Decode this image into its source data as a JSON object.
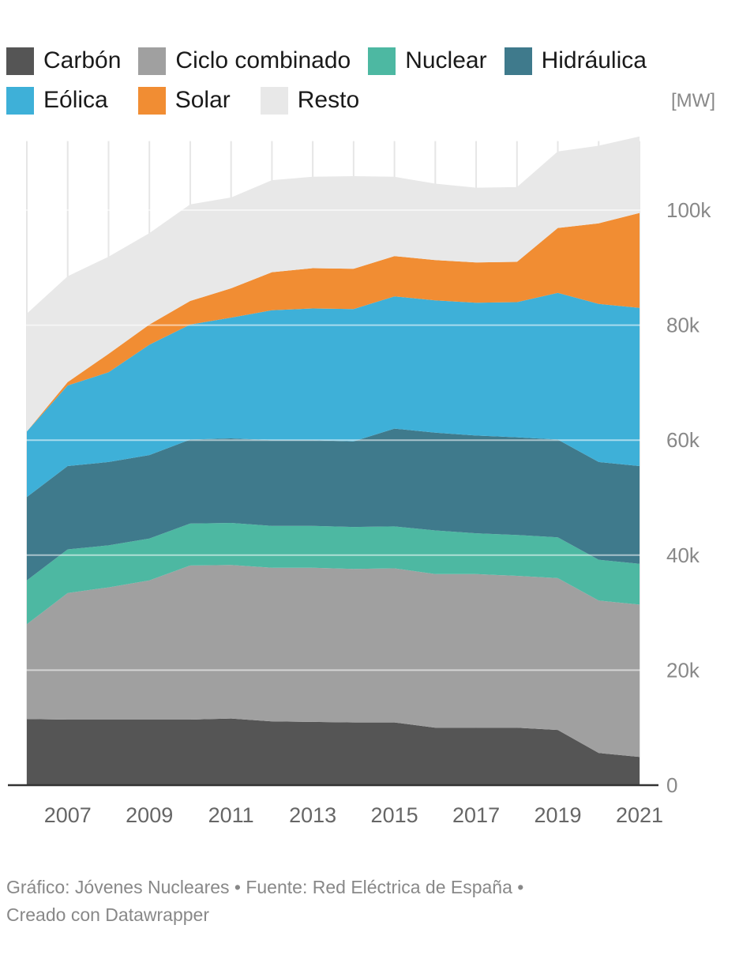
{
  "chart_data": {
    "type": "area",
    "stacked": true,
    "title": "",
    "xlabel": "",
    "ylabel": "",
    "unit": "[MW]",
    "x": [
      2006,
      2007,
      2008,
      2009,
      2010,
      2011,
      2012,
      2013,
      2014,
      2015,
      2016,
      2017,
      2018,
      2019,
      2020,
      2021
    ],
    "x_ticks": [
      "2007",
      "2009",
      "2011",
      "2013",
      "2015",
      "2017",
      "2019",
      "2021"
    ],
    "y_ticks": [
      "0",
      "20k",
      "40k",
      "60k",
      "80k",
      "100k"
    ],
    "ylim": [
      0,
      112000
    ],
    "grid": "vertical and horizontal",
    "legend_position": "top",
    "series": [
      {
        "name": "Carbón",
        "color": "#555555",
        "values": [
          11500,
          11400,
          11400,
          11400,
          11400,
          11600,
          11100,
          11000,
          10900,
          10900,
          10000,
          10000,
          10000,
          9600,
          5600,
          4900
        ]
      },
      {
        "name": "Ciclo combinado",
        "color": "#a0a0a0",
        "values": [
          16500,
          22000,
          23000,
          24200,
          26800,
          26700,
          26700,
          26800,
          26700,
          26800,
          26700,
          26700,
          26400,
          26400,
          26500,
          26500
        ]
      },
      {
        "name": "Nuclear",
        "color": "#4db8a2",
        "values": [
          7600,
          7600,
          7300,
          7300,
          7300,
          7300,
          7300,
          7300,
          7300,
          7300,
          7600,
          7100,
          7100,
          7100,
          7100,
          7100
        ]
      },
      {
        "name": "Hidráulica",
        "color": "#3f7a8c",
        "values": [
          14500,
          14500,
          14500,
          14500,
          14600,
          14700,
          14900,
          14900,
          14900,
          17000,
          17000,
          17000,
          17000,
          17000,
          17000,
          17000
        ]
      },
      {
        "name": "Eólica",
        "color": "#3eb0d8",
        "values": [
          11400,
          14000,
          15600,
          19200,
          20000,
          21000,
          22600,
          22900,
          23000,
          23000,
          23000,
          23100,
          23500,
          25500,
          27500,
          27500
        ]
      },
      {
        "name": "Solar",
        "color": "#f18d33",
        "values": [
          0,
          600,
          3200,
          3500,
          4100,
          5100,
          6600,
          7000,
          7000,
          7000,
          7000,
          7000,
          7000,
          11300,
          14000,
          16500
        ]
      },
      {
        "name": "Resto",
        "color": "#e8e8e8",
        "values": [
          20500,
          18400,
          16900,
          15900,
          16800,
          15800,
          16000,
          15900,
          16100,
          13800,
          13300,
          13000,
          13000,
          13300,
          13500,
          13300
        ]
      }
    ]
  },
  "footer": {
    "line1": "Gráfico: Jóvenes Nucleares • Fuente: Red Eléctrica de España •",
    "line2": "Creado con Datawrapper"
  }
}
